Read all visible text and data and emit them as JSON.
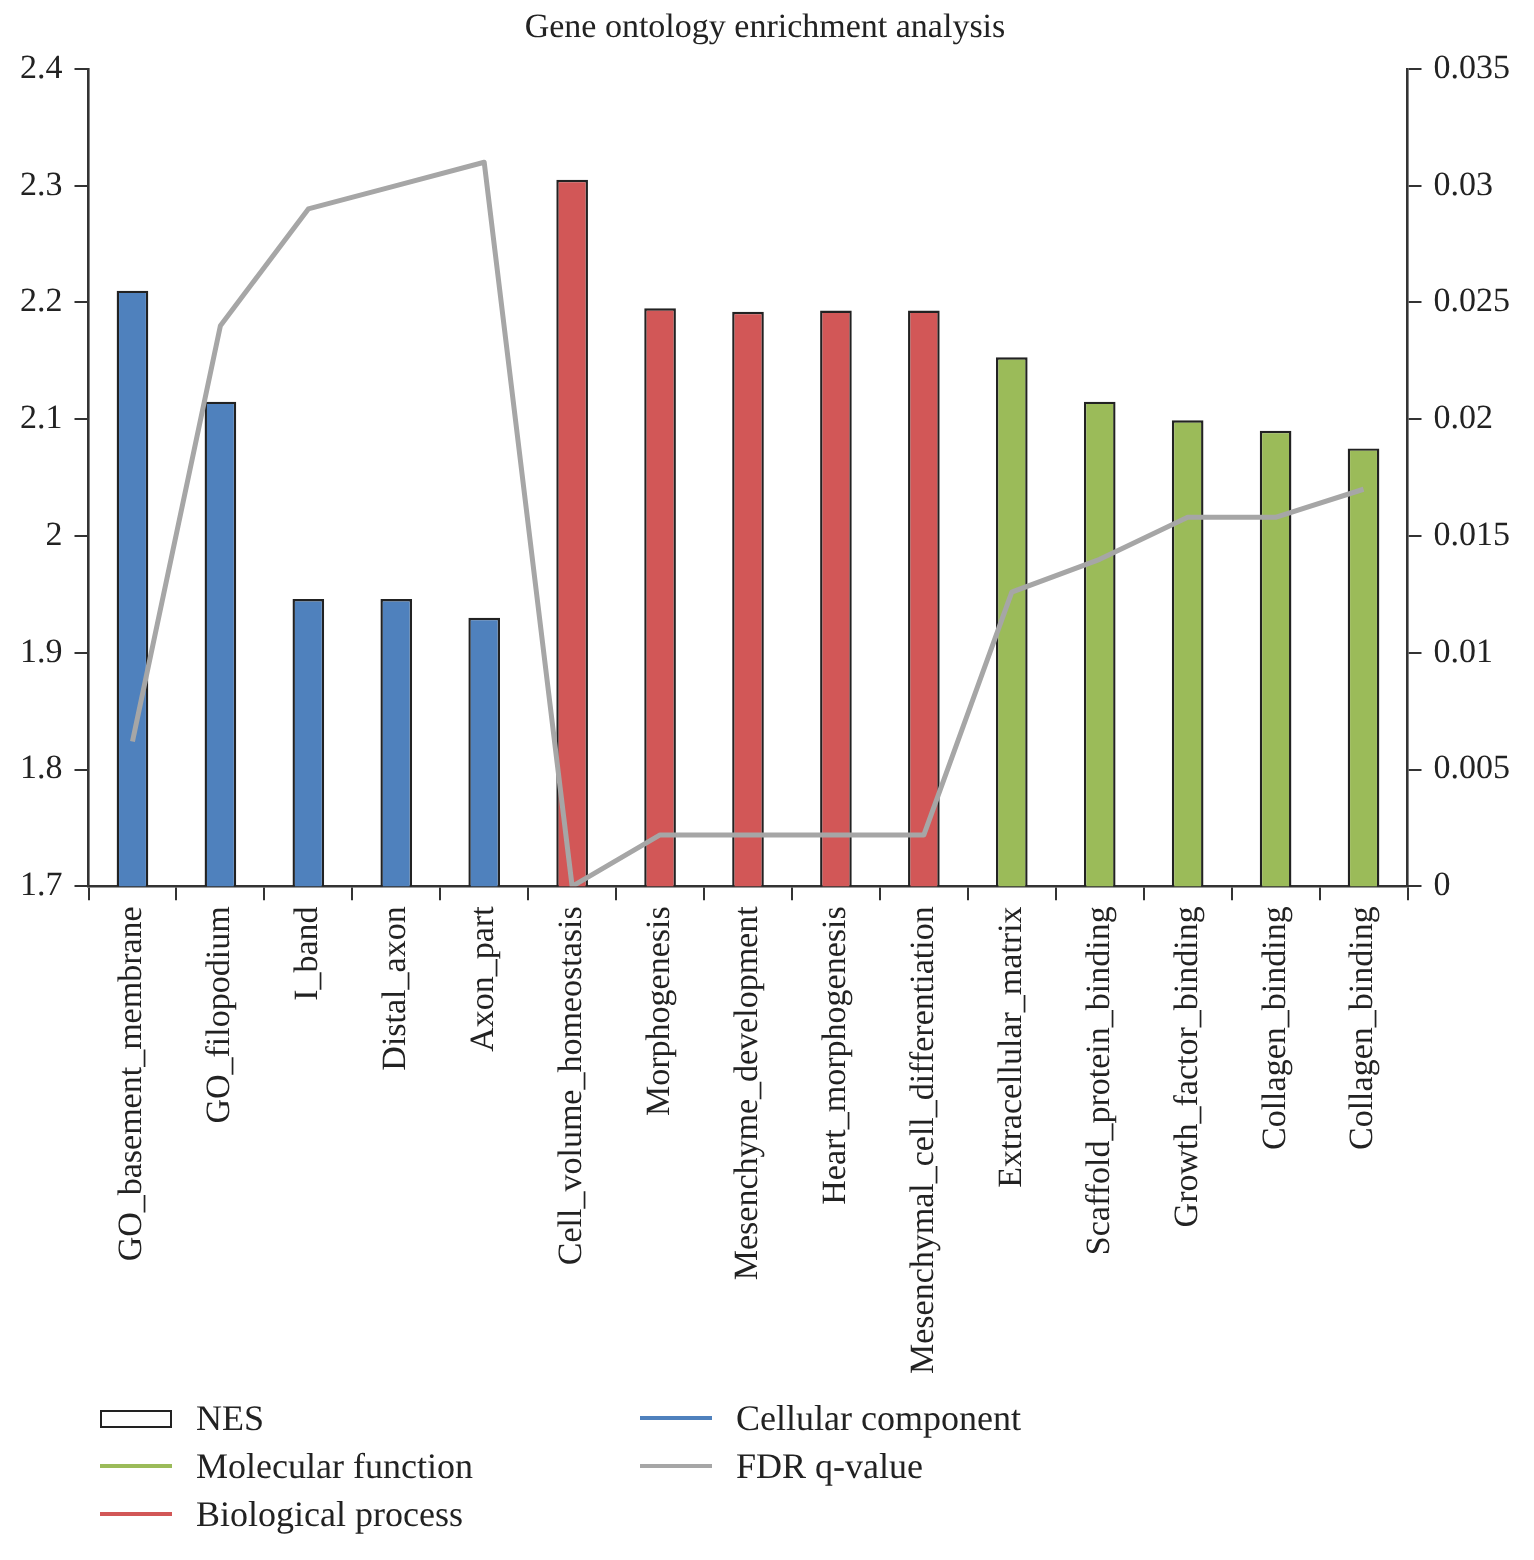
{
  "chart_data": {
    "type": "bar",
    "title": "Gene ontology enrichment analysis",
    "categories": [
      "GO_basement_membrane",
      "GO_filopodium",
      "I_band",
      "Distal_axon",
      "Axon_part",
      "Cell_volume_homeostasis",
      "Morphogenesis",
      "Mesenchyme_development",
      "Heart_morphogenesis",
      "Mesenchymal_cell_differentiation",
      "Extracellular_matrix",
      "Scaffold_protein_binding",
      "Growth_factor_binding",
      "Collagen_binding",
      "Collagen_binding"
    ],
    "stacked": true,
    "legend_title": "NES",
    "series": [
      {
        "name": "Molecular function",
        "color": "#9bbb59",
        "values": [
          null,
          null,
          null,
          null,
          null,
          null,
          null,
          null,
          null,
          null,
          2.153,
          2.115,
          2.099,
          2.09,
          2.075
        ]
      },
      {
        "name": "Biological process",
        "color": "#d25757",
        "values": [
          null,
          null,
          null,
          null,
          null,
          2.305,
          2.195,
          2.192,
          2.193,
          2.193,
          null,
          null,
          null,
          null,
          null
        ]
      },
      {
        "name": "Cellular component",
        "color": "#4f81bd",
        "values": [
          2.21,
          2.115,
          1.946,
          1.946,
          1.93,
          null,
          null,
          null,
          null,
          null,
          null,
          null,
          null,
          null,
          null
        ]
      },
      {
        "name": "FDR q-value",
        "type": "line",
        "axis": "y2",
        "color": "#a6a6a6",
        "values": [
          0.0062,
          0.024,
          0.029,
          0.03,
          0.031,
          0,
          0.0022,
          0.0022,
          0.0022,
          0.0022,
          0.0126,
          0.014,
          0.0158,
          0.0158,
          0.017
        ]
      }
    ],
    "ylim": [
      1.7,
      2.4
    ],
    "yticks": [
      1.7,
      1.8,
      1.9,
      2,
      2.1,
      2.2,
      2.3,
      2.4
    ],
    "y2lim": [
      0,
      0.035
    ],
    "y2ticks": [
      0,
      0.005,
      0.01,
      0.015,
      0.02,
      0.025,
      0.03,
      0.035
    ],
    "grid": false,
    "legend": "bottom",
    "marker": "none"
  }
}
